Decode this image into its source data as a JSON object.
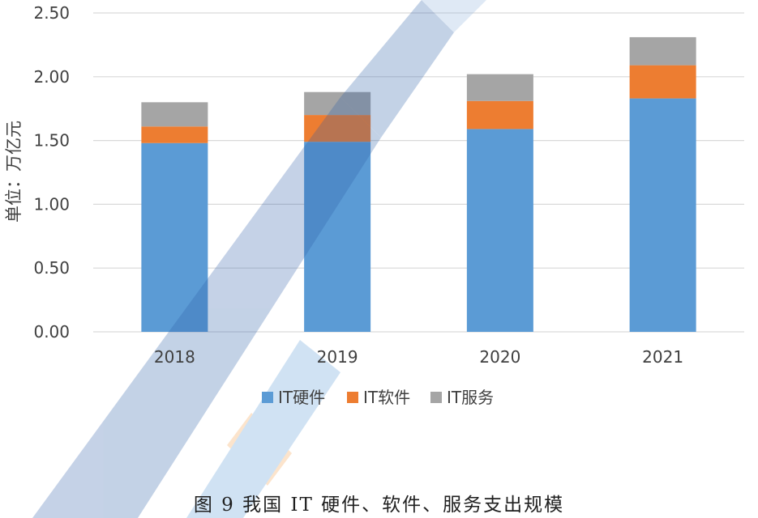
{
  "chart_data": {
    "type": "bar",
    "stacked": true,
    "categories": [
      "2018",
      "2019",
      "2020",
      "2021"
    ],
    "series": [
      {
        "name": "IT硬件",
        "color": "#5b9bd5",
        "values": [
          1.48,
          1.49,
          1.59,
          1.83
        ]
      },
      {
        "name": "IT软件",
        "color": "#ed7d31",
        "values": [
          0.13,
          0.21,
          0.22,
          0.26
        ]
      },
      {
        "name": "IT服务",
        "color": "#a5a5a5",
        "values": [
          0.19,
          0.18,
          0.21,
          0.22
        ]
      }
    ],
    "ylabel": "单位：万亿元",
    "ylim": [
      0,
      2.5
    ],
    "yticks": [
      "0.00",
      "0.50",
      "1.00",
      "1.50",
      "2.00",
      "2.50"
    ],
    "grid": true,
    "legend": "bottom"
  },
  "caption": "图 9 我国 IT 硬件、软件、服务支出规模",
  "watermark": "CAICT中国信通院"
}
